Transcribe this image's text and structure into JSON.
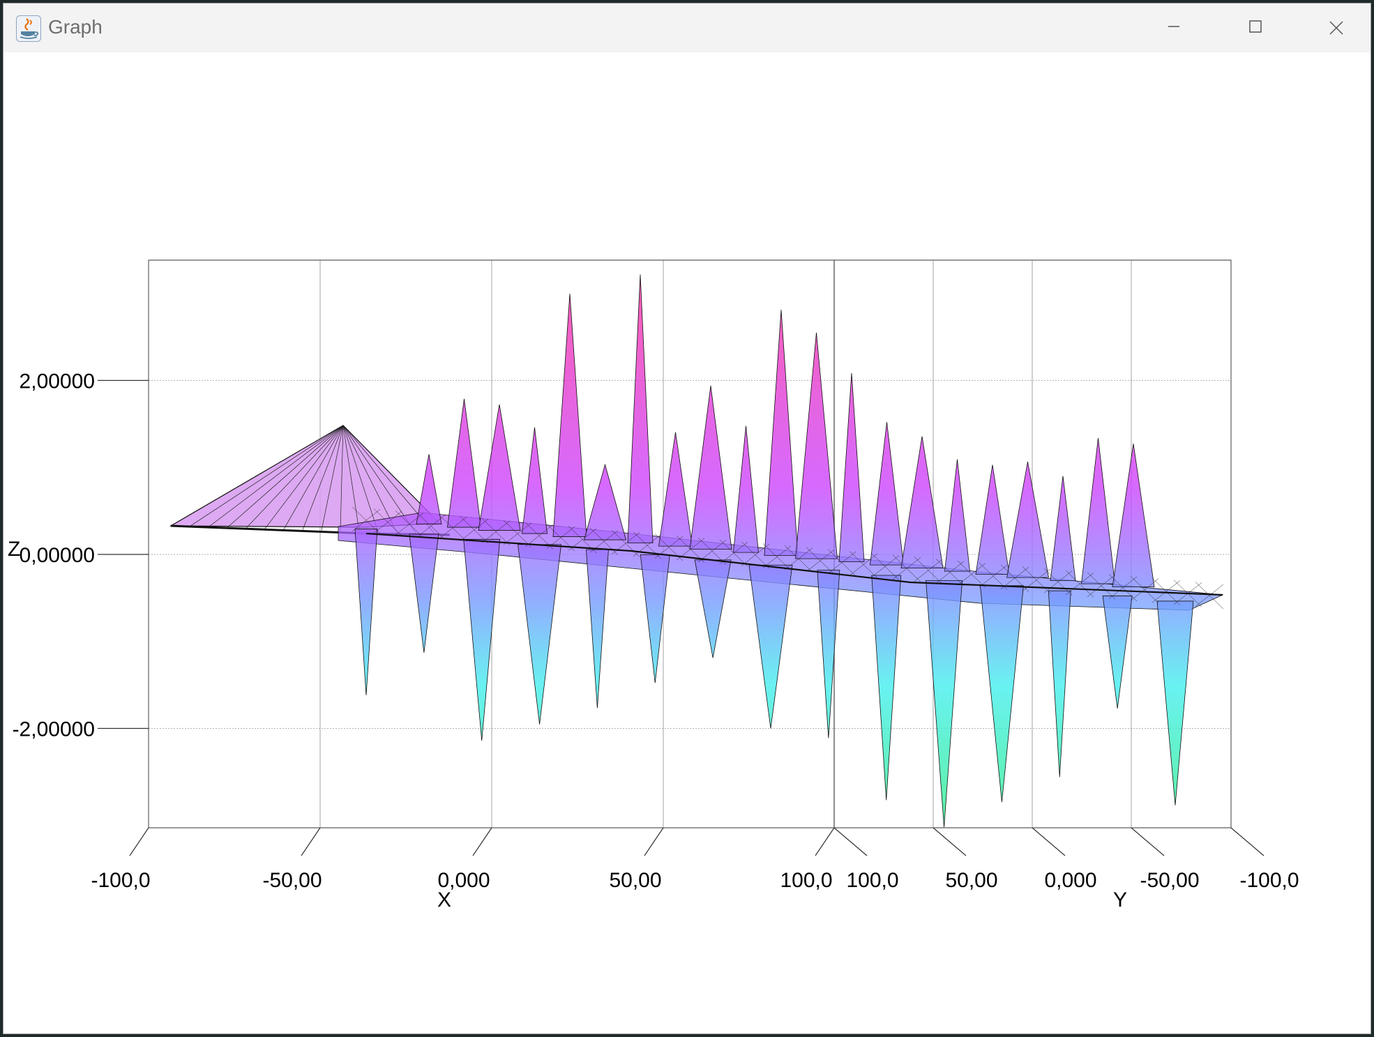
{
  "window": {
    "title": "Graph",
    "icons": {
      "app": "java-cup-icon",
      "minimize": "minimize-icon",
      "maximize": "maximize-icon",
      "close": "close-icon"
    }
  },
  "chart_data": {
    "type": "surface3d",
    "title": "",
    "axes": {
      "x": {
        "label": "X",
        "ticks": [
          "-100,0",
          "-50,00",
          "0,000",
          "50,00",
          "100,0"
        ],
        "range": [
          -100,
          100
        ]
      },
      "y": {
        "label": "Y",
        "ticks": [
          "100,0",
          "50,00",
          "0,000",
          "-50,00",
          "-100,0"
        ],
        "range": [
          100,
          -100
        ]
      },
      "z": {
        "label": "Z",
        "ticks": [
          "2,00000",
          "0,00000",
          "-2,00000"
        ],
        "range": [
          -3.2,
          3.4
        ]
      }
    },
    "grid": true,
    "colormap": {
      "high": "#ff3399",
      "mid_high": "#cc44ff",
      "mid": "#7799ff",
      "low": "#44eeee",
      "lowest": "#33ee88"
    },
    "surface_peaks_z": [
      1.5,
      2.1,
      2.0,
      1.7,
      3.2,
      1.2,
      3.35,
      1.5,
      2.0,
      1.5,
      2.8,
      2.5,
      2.0,
      1.4,
      1.2,
      0.9,
      0.8,
      0.8,
      0.6,
      1.0,
      0.9
    ],
    "surface_troughs_z": [
      -1.7,
      -1.2,
      -2.2,
      -2.0,
      -1.8,
      -1.5,
      -1.2,
      -2.0,
      -2.1,
      -2.8,
      -3.1,
      -2.8,
      -2.5,
      -1.7,
      -2.8
    ]
  }
}
